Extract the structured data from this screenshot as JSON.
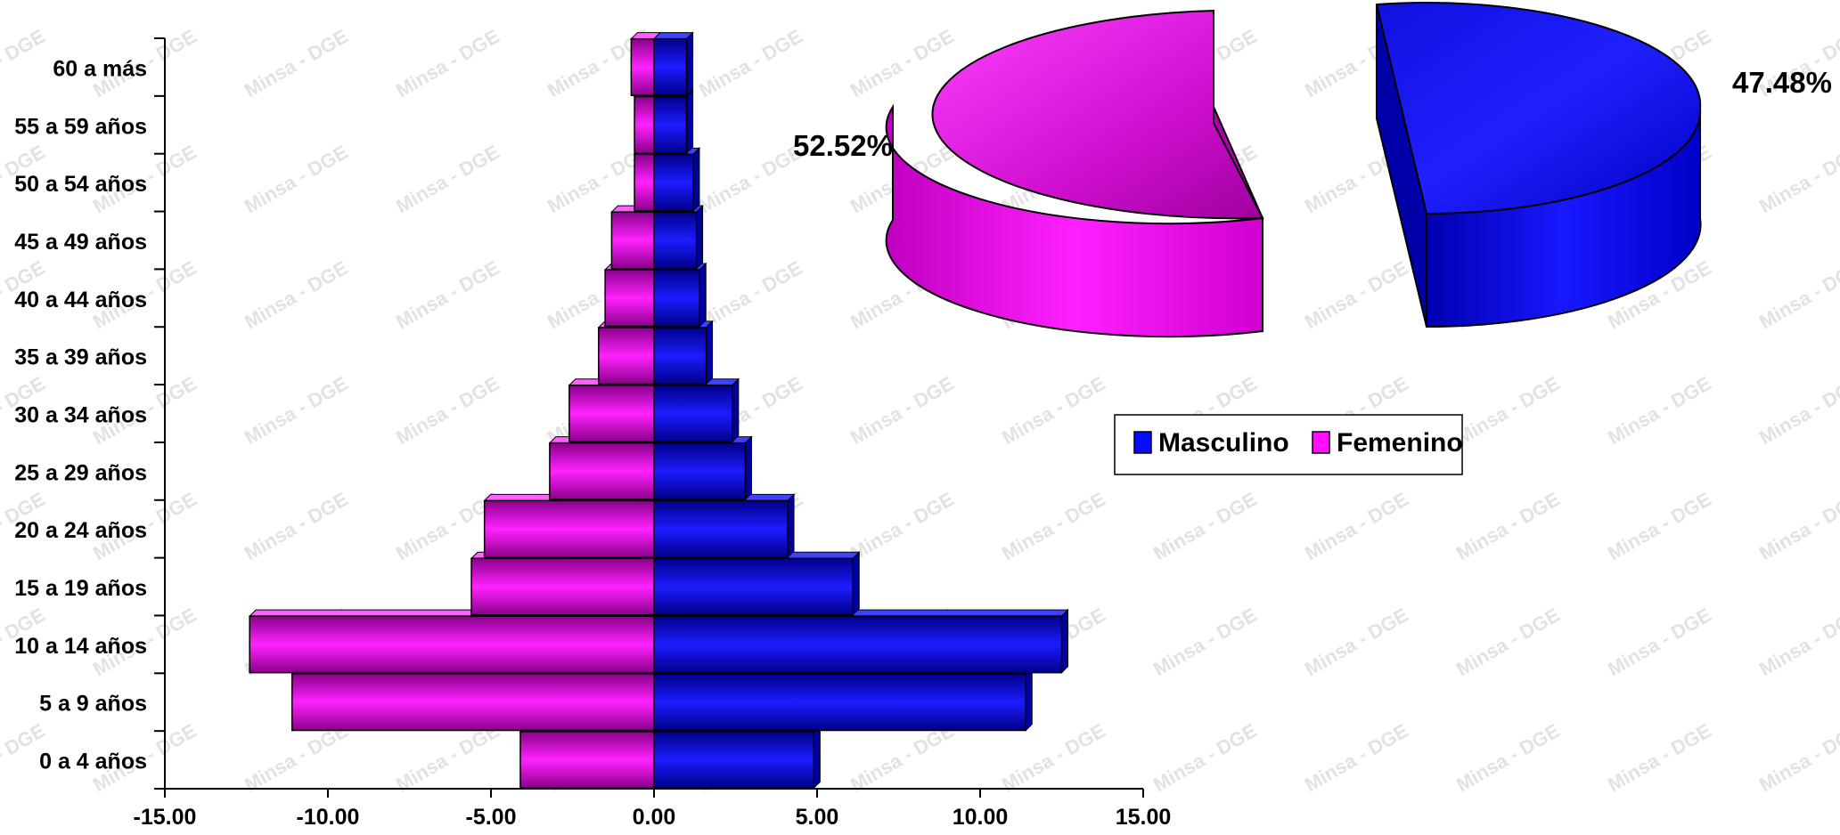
{
  "watermark_text": "Minsa - DGE",
  "legend": {
    "masculino_label": "Masculino",
    "femenino_label": "Femenino"
  },
  "colors": {
    "masculino": "#0a0aff",
    "femenino": "#ff10ff",
    "axis": "#000000"
  },
  "chart_data": [
    {
      "type": "bar",
      "orientation": "horizontal",
      "style": "population-pyramid-3d",
      "categories": [
        "0 a 4 años",
        "5 a 9 años",
        "10 a 14 años",
        "15 a 19 años",
        "20 a 24 años",
        "25 a 29 años",
        "30 a 34 años",
        "35 a 39 años",
        "40 a 44 años",
        "45 a 49 años",
        "50 a 54 años",
        "55 a 59 años",
        "60 a más"
      ],
      "series": [
        {
          "name": "Masculino",
          "color": "#0a0aff",
          "values": [
            4.9,
            11.4,
            12.5,
            6.1,
            4.1,
            2.8,
            2.4,
            1.6,
            1.4,
            1.3,
            1.2,
            1.0,
            1.0
          ]
        },
        {
          "name": "Femenino",
          "color": "#ff10ff",
          "values": [
            -4.1,
            -11.1,
            -12.4,
            -5.6,
            -5.2,
            -3.2,
            -2.6,
            -1.7,
            -1.5,
            -1.3,
            -0.6,
            -0.6,
            -0.7
          ]
        }
      ],
      "xlim": [
        -15,
        15
      ],
      "xticks": [
        "-15.00",
        "-10.00",
        "-5.00",
        "0.00",
        "5.00",
        "10.00",
        "15.00"
      ],
      "grid": false
    },
    {
      "type": "pie",
      "style": "3d-exploded",
      "series": [
        {
          "name": "Femenino",
          "value": 52.52,
          "label": "52.52%",
          "color": "#ff10ff"
        },
        {
          "name": "Masculino",
          "value": 47.48,
          "label": "47.48%",
          "color": "#0a0aff"
        }
      ],
      "legend_position": "below"
    }
  ]
}
